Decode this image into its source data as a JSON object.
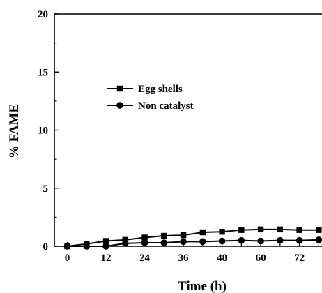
{
  "chart_data": {
    "type": "line",
    "title": "",
    "xlabel": "Time (h)",
    "ylabel": "% FAME",
    "xlim": [
      -4,
      79
    ],
    "ylim": [
      0,
      20
    ],
    "xticks": [
      0,
      12,
      24,
      36,
      48,
      60,
      72
    ],
    "yticks": [
      0,
      5,
      10,
      15,
      20
    ],
    "x_tick_labels": [
      "0",
      "12",
      "24",
      "36",
      "48",
      "60",
      "72"
    ],
    "y_tick_labels": [
      "0",
      "5",
      "10",
      "15",
      "20"
    ],
    "grid": false,
    "legend_position": "upper-left",
    "series": [
      {
        "name": "Egg shells",
        "marker": "square",
        "color": "#000000",
        "x": [
          0,
          6,
          12,
          18,
          24,
          30,
          36,
          42,
          48,
          54,
          60,
          66,
          72,
          78
        ],
        "y": [
          0.0,
          0.2,
          0.45,
          0.55,
          0.75,
          0.9,
          0.95,
          1.2,
          1.25,
          1.4,
          1.45,
          1.45,
          1.4,
          1.4
        ]
      },
      {
        "name": "Non catalyst",
        "marker": "circle",
        "color": "#000000",
        "x": [
          0,
          6,
          12,
          18,
          24,
          30,
          36,
          42,
          48,
          54,
          60,
          66,
          72,
          78
        ],
        "y": [
          0.0,
          0.0,
          0.0,
          0.25,
          0.3,
          0.3,
          0.4,
          0.4,
          0.45,
          0.5,
          0.45,
          0.5,
          0.5,
          0.55
        ]
      }
    ]
  }
}
